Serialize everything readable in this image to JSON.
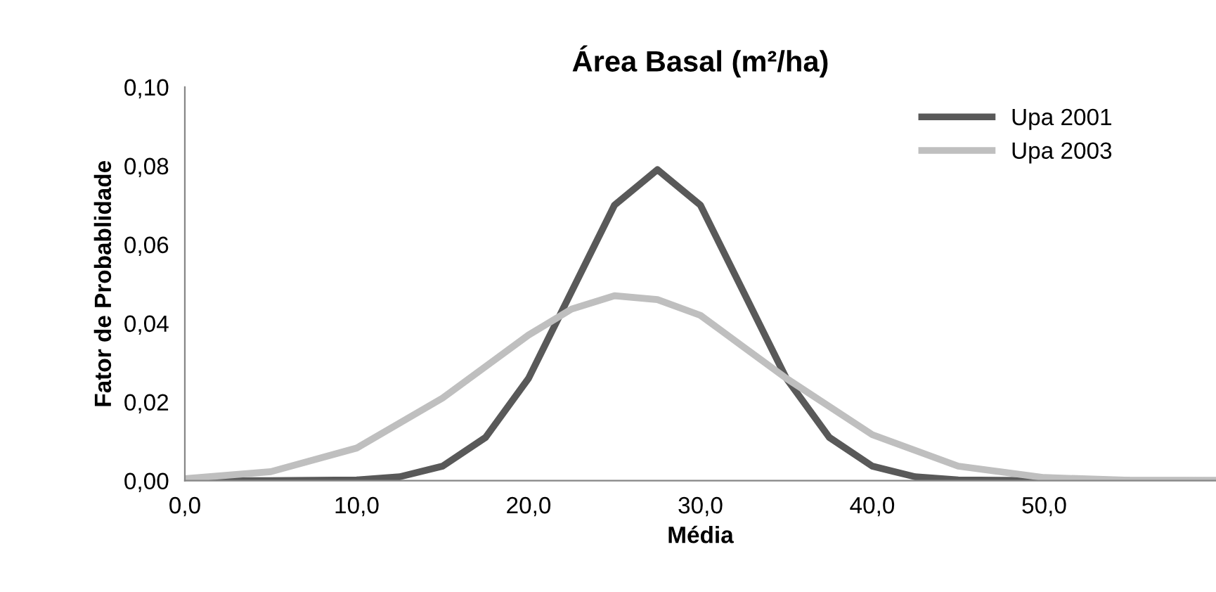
{
  "chart_data": {
    "type": "line",
    "title": "Área Basal (m²/ha)",
    "xlabel": "Média",
    "ylabel": "Fator de Probablidade",
    "xlim": [
      0,
      60
    ],
    "ylim": [
      0,
      0.1
    ],
    "xticks": [
      {
        "value": 0,
        "label": "0,0"
      },
      {
        "value": 10,
        "label": "10,0"
      },
      {
        "value": 20,
        "label": "20,0"
      },
      {
        "value": 30,
        "label": "30,0"
      },
      {
        "value": 40,
        "label": "40,0"
      },
      {
        "value": 50,
        "label": "50,0"
      }
    ],
    "yticks": [
      {
        "value": 0,
        "label": "0,00"
      },
      {
        "value": 0.02,
        "label": "0,02"
      },
      {
        "value": 0.04,
        "label": "0,04"
      },
      {
        "value": 0.06,
        "label": "0,06"
      },
      {
        "value": 0.08,
        "label": "0,08"
      },
      {
        "value": 0.1,
        "label": "0,10"
      }
    ],
    "grid": false,
    "legend": "top right",
    "marker": "none",
    "line_style": "solid",
    "series": [
      {
        "name": "Upa 2001",
        "color": "#595959",
        "x": [
          0,
          5,
          10,
          12.5,
          15,
          17.5,
          20,
          22.5,
          25,
          27.5,
          30,
          32.5,
          35,
          37.5,
          40,
          42.5,
          45,
          50,
          60
        ],
        "values": [
          0,
          0,
          0.0002,
          0.001,
          0.0037,
          0.011,
          0.026,
          0.048,
          0.07,
          0.079,
          0.07,
          0.048,
          0.026,
          0.011,
          0.0037,
          0.001,
          0.0002,
          0,
          0
        ]
      },
      {
        "name": "Upa 2003",
        "color": "#bfbfbf",
        "x": [
          0,
          5,
          10,
          15,
          20,
          22.5,
          25,
          27.5,
          30,
          32.5,
          35,
          40,
          45,
          50,
          55,
          60
        ],
        "values": [
          0.0005,
          0.0023,
          0.0083,
          0.021,
          0.037,
          0.0436,
          0.047,
          0.046,
          0.042,
          0.034,
          0.026,
          0.0117,
          0.0037,
          0.0008,
          0.0001,
          0
        ]
      }
    ]
  }
}
